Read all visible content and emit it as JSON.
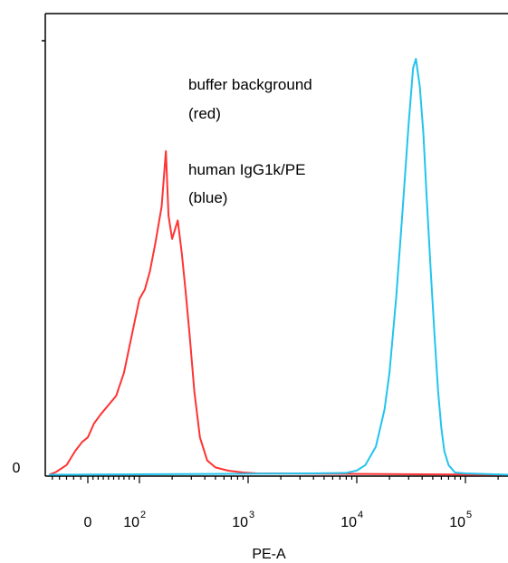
{
  "chart_data": {
    "type": "line",
    "title": "",
    "xlabel": "PE-A",
    "ylabel": "",
    "x_scale": "biexponential",
    "xlim": [
      -60,
      200000
    ],
    "ylim": [
      0,
      1
    ],
    "x_tick_labels": [
      {
        "value": 0,
        "base": "0",
        "exp": ""
      },
      {
        "value": 100,
        "base": "10",
        "exp": "2"
      },
      {
        "value": 1000,
        "base": "10",
        "exp": "3"
      },
      {
        "value": 10000,
        "base": "10",
        "exp": "4"
      },
      {
        "value": 100000,
        "base": "10",
        "exp": "5"
      }
    ],
    "y_tick_labels": [
      "0"
    ],
    "grid": false,
    "annotations": [
      {
        "id": "red",
        "lines": [
          "buffer background",
          "(red)"
        ]
      },
      {
        "id": "blue",
        "lines": [
          "human IgG1k/PE",
          "(blue)"
        ]
      }
    ],
    "series": [
      {
        "color": "#ff3333",
        "x": [
          -45,
          -30,
          -18,
          -8,
          0,
          12,
          25,
          40,
          55,
          70,
          85,
          100,
          112,
          125,
          140,
          160,
          175,
          185,
          200,
          225,
          245,
          265,
          290,
          320,
          360,
          420,
          500,
          650,
          900,
          1200
        ],
        "y": [
          0.005,
          0.02,
          0.05,
          0.07,
          0.08,
          0.11,
          0.13,
          0.15,
          0.17,
          0.22,
          0.3,
          0.38,
          0.4,
          0.44,
          0.5,
          0.58,
          0.7,
          0.56,
          0.51,
          0.55,
          0.48,
          0.4,
          0.3,
          0.18,
          0.08,
          0.03,
          0.015,
          0.008,
          0.004,
          0.002
        ]
      },
      {
        "color": "#22c4ee",
        "x": [
          4000,
          8000,
          10000,
          12000,
          15000,
          18000,
          20000,
          23000,
          26000,
          30000,
          33000,
          35000,
          38000,
          41000,
          44000,
          48000,
          52000,
          56000,
          60000,
          64000,
          70000,
          80000,
          100000
        ],
        "y": [
          0.002,
          0.003,
          0.008,
          0.02,
          0.06,
          0.14,
          0.22,
          0.38,
          0.55,
          0.76,
          0.88,
          0.9,
          0.84,
          0.74,
          0.6,
          0.44,
          0.3,
          0.18,
          0.1,
          0.05,
          0.02,
          0.004,
          0.002
        ]
      }
    ]
  }
}
